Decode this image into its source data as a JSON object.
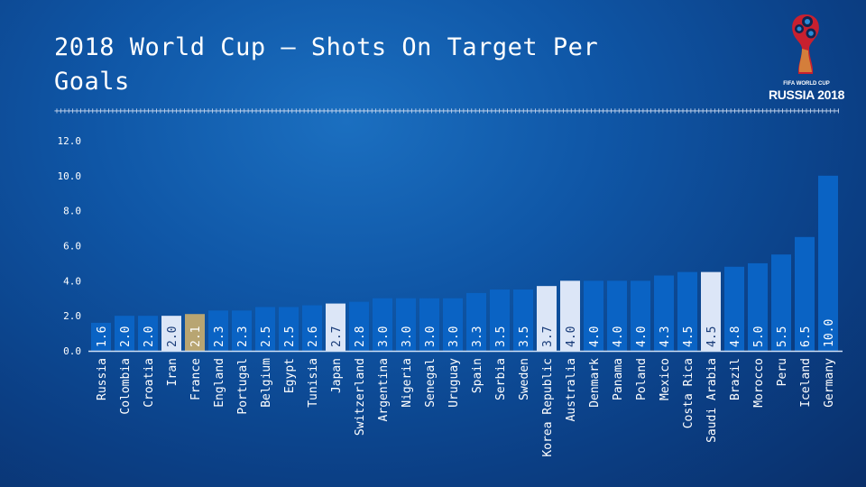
{
  "title": "2018 World Cup – Shots On Target Per Goals",
  "logo": {
    "line1": "FIFA WORLD CUP",
    "line2": "RUSSIA 2018"
  },
  "colors": {
    "bar": "#0a63c4",
    "highlight": "#dce6f7",
    "france": "#b8a572"
  },
  "chart_data": {
    "type": "bar",
    "title": "2018 World Cup – Shots On Target Per Goals",
    "xlabel": "",
    "ylabel": "",
    "ylim": [
      0,
      12
    ],
    "yticks": [
      "0.0",
      "2.0",
      "4.0",
      "6.0",
      "8.0",
      "10.0",
      "12.0"
    ],
    "categories": [
      "Russia",
      "Colombia",
      "Croatia",
      "Iran",
      "France",
      "England",
      "Portugal",
      "Belgium",
      "Egypt",
      "Tunisia",
      "Japan",
      "Switzerland",
      "Argentina",
      "Nigeria",
      "Senegal",
      "Uruguay",
      "Spain",
      "Serbia",
      "Sweden",
      "Korea Republic",
      "Australia",
      "Denmark",
      "Panama",
      "Poland",
      "Mexico",
      "Costa Rica",
      "Saudi Arabia",
      "Brazil",
      "Morocco",
      "Peru",
      "Iceland",
      "Germany"
    ],
    "values": [
      1.6,
      2.0,
      2.0,
      2.0,
      2.1,
      2.3,
      2.3,
      2.5,
      2.5,
      2.6,
      2.7,
      2.8,
      3.0,
      3.0,
      3.0,
      3.0,
      3.3,
      3.5,
      3.5,
      3.7,
      4.0,
      4.0,
      4.0,
      4.0,
      4.3,
      4.5,
      4.5,
      4.8,
      5.0,
      5.5,
      6.5,
      10.0
    ],
    "data_labels": [
      "1.6",
      "2.0",
      "2.0",
      "2.0",
      "2.1",
      "2.3",
      "2.3",
      "2.5",
      "2.5",
      "2.6",
      "2.7",
      "2.8",
      "3.0",
      "3.0",
      "3.0",
      "3.0",
      "3.3",
      "3.5",
      "3.5",
      "3.7",
      "4.0",
      "4.0",
      "4.0",
      "4.0",
      "4.3",
      "4.5",
      "4.5",
      "4.8",
      "5.0",
      "5.5",
      "6.5",
      "10.0"
    ],
    "highlighted": [
      "Iran",
      "Japan",
      "Korea Republic",
      "Australia",
      "Saudi Arabia"
    ],
    "gold": [
      "France"
    ],
    "grid": false,
    "legend": "none"
  }
}
